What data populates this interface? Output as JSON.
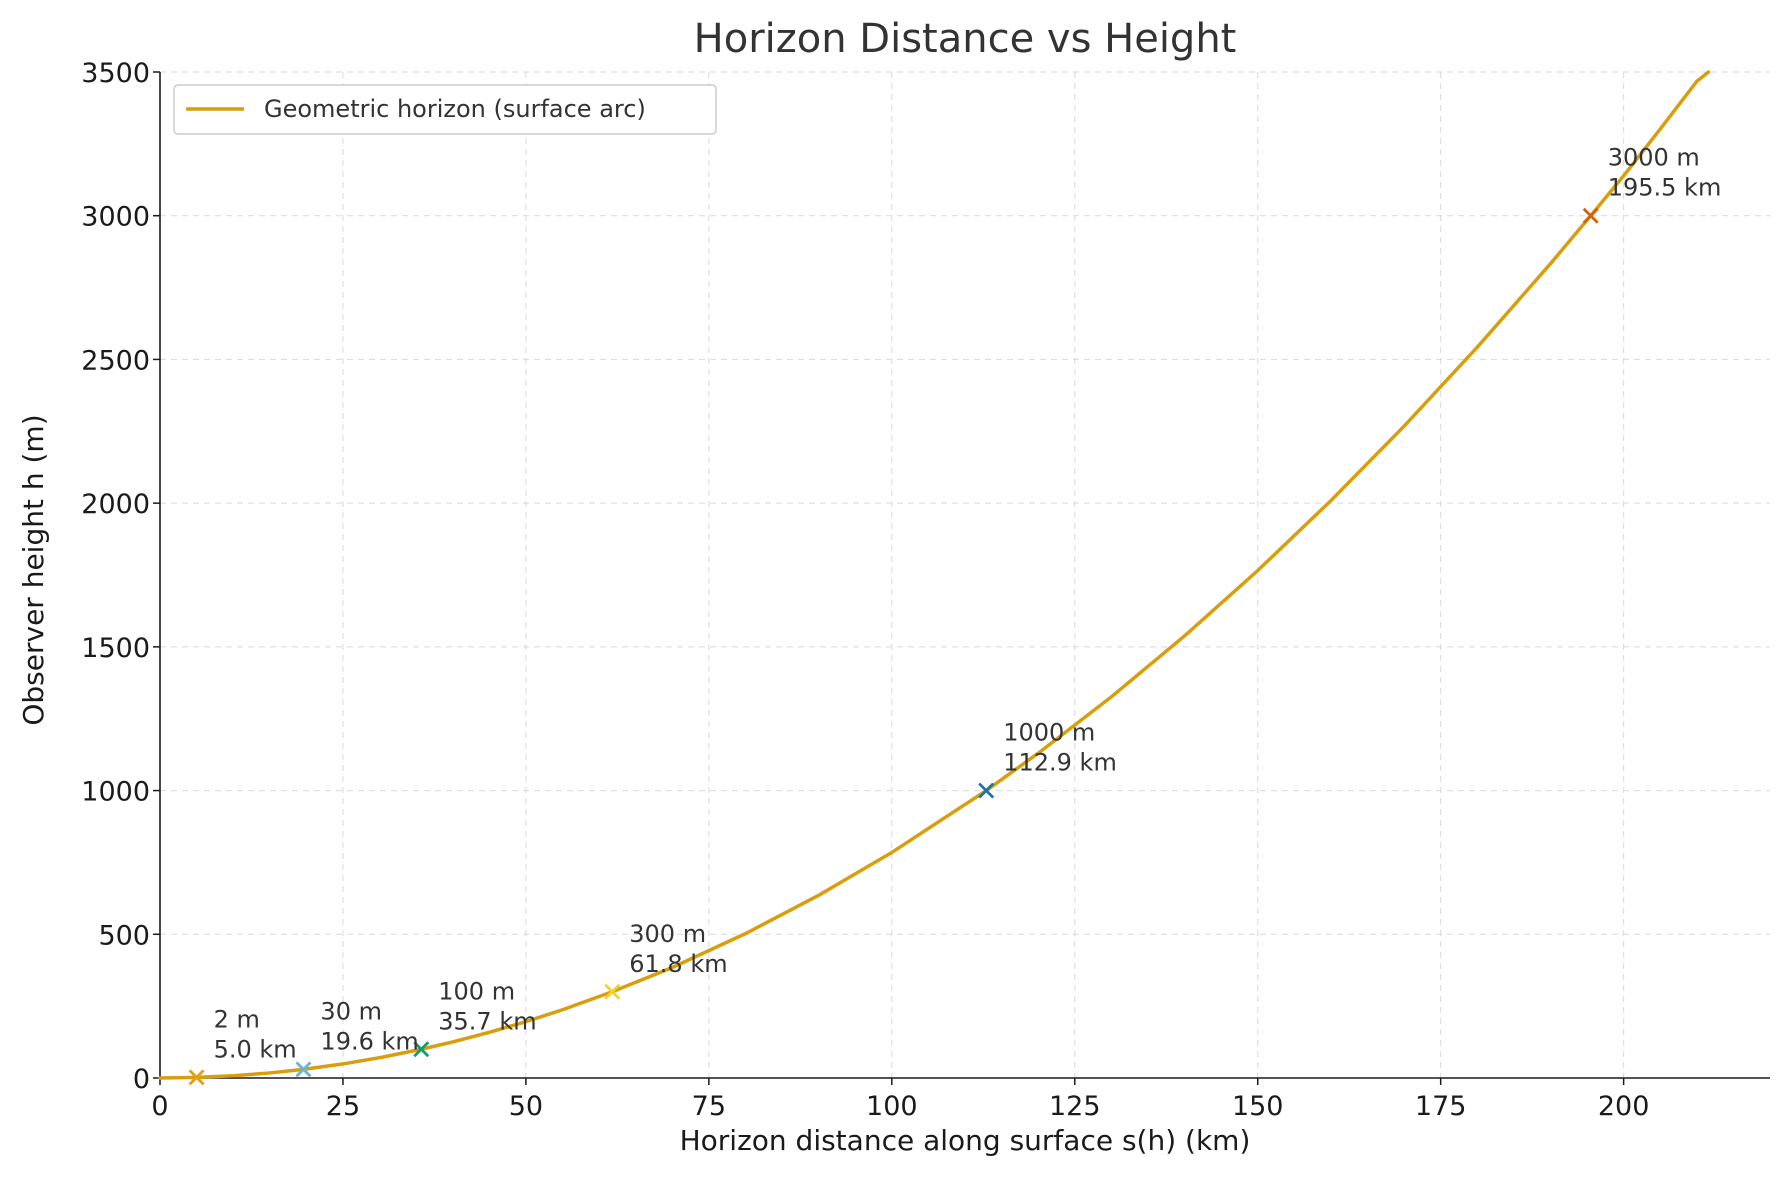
{
  "chart_data": {
    "type": "line",
    "title": "Horizon Distance vs Height",
    "xlabel": "Horizon distance along surface s(h) (km)",
    "ylabel": "Observer height h (m)",
    "xlim": [
      0,
      220
    ],
    "ylim": [
      0,
      3500
    ],
    "xticks": [
      "0",
      "25",
      "50",
      "75",
      "100",
      "125",
      "150",
      "175",
      "200"
    ],
    "yticks": [
      "0",
      "500",
      "1000",
      "1500",
      "2000",
      "2500",
      "3000",
      "3500"
    ],
    "grid": true,
    "legend_position": "top-left",
    "series": [
      {
        "name": "Geometric horizon (surface arc)",
        "color": "#d99e0b",
        "x": [
          0,
          5.0,
          10,
          15,
          19.6,
          25,
          30,
          35.7,
          40,
          45,
          50,
          55,
          61.8,
          70,
          80,
          90,
          100,
          112.9,
          120,
          130,
          140,
          150,
          160,
          170,
          180,
          190,
          195.5,
          200,
          205,
          210,
          211.6
        ],
        "y": [
          0,
          2,
          7.8,
          17.6,
          30,
          49,
          70.6,
          100,
          125.5,
          158.9,
          196.1,
          237.4,
          300,
          384.5,
          502.2,
          635.6,
          784.7,
          1000,
          1129.9,
          1326.1,
          1538,
          1765.6,
          2008.9,
          2267.9,
          2542.6,
          2833,
          3000,
          3138.9,
          3301.5,
          3467.7,
          3500
        ]
      }
    ],
    "markers": [
      {
        "x": 5.0,
        "y": 2,
        "label_height": "2 m",
        "label_distance": "5.0 km",
        "color": "#e09e1b"
      },
      {
        "x": 19.6,
        "y": 30,
        "label_height": "30 m",
        "label_distance": "19.6 km",
        "color": "#6cb4d6"
      },
      {
        "x": 35.7,
        "y": 100,
        "label_height": "100 m",
        "label_distance": "35.7 km",
        "color": "#129b74"
      },
      {
        "x": 61.8,
        "y": 300,
        "label_height": "300 m",
        "label_distance": "61.8 km",
        "color": "#f2d329"
      },
      {
        "x": 112.9,
        "y": 1000,
        "label_height": "1000 m",
        "label_distance": "112.9 km",
        "color": "#1f73a8"
      },
      {
        "x": 195.5,
        "y": 3000,
        "label_height": "3000 m",
        "label_distance": "195.5 km",
        "color": "#d1640b"
      }
    ]
  }
}
